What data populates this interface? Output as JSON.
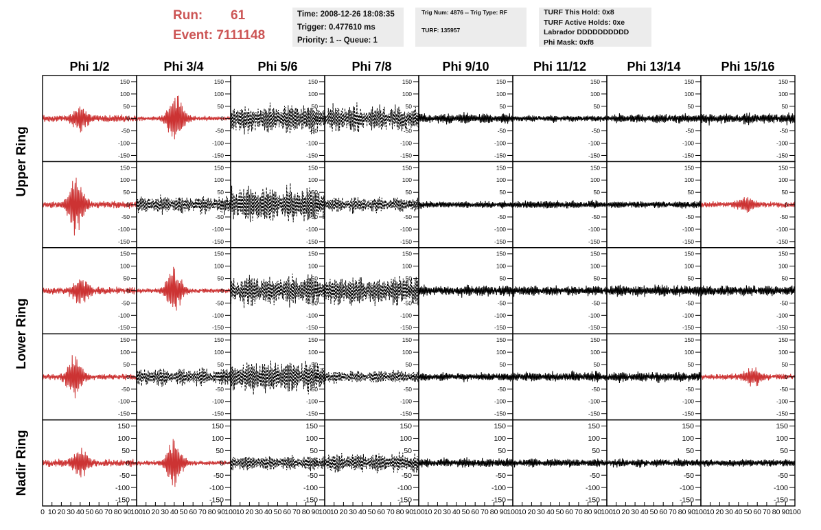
{
  "header": {
    "run_label": "Run:",
    "run_value": "61",
    "event_label": "Event:",
    "event_value": "7111148",
    "time_line": "Time: 2008-12-26 18:08:35",
    "trigger_line": "Trigger: 0.477610 ms",
    "priority_line": "Priority: 1 -- Queue: 1",
    "trig_line": "Trig Num: 4876 -- Trig Type: RF",
    "turf_line": "TURF: 135957",
    "hold_line": "TURF This Hold: 0x8",
    "active_holds_line": "TURF Active Holds: 0xe",
    "labrador_line": "Labrador DDDDDDDDDD",
    "phi_mask_line": "Phi Mask: 0xf8"
  },
  "chart_data": {
    "type": "line",
    "columns": [
      "Phi 1/2",
      "Phi 3/4",
      "Phi 5/6",
      "Phi 7/8",
      "Phi 9/10",
      "Phi 11/12",
      "Phi 13/14",
      "Phi 15/16"
    ],
    "rows": [
      "Upper Ring",
      "Upper Ring",
      "Lower Ring",
      "Lower Ring",
      "Nadir Ring"
    ],
    "row_labels": [
      "Upper Ring",
      "Lower Ring",
      "Nadir Ring"
    ],
    "xlim": [
      0,
      100
    ],
    "ylim": [
      -175,
      175
    ],
    "yticks": [
      -150,
      -100,
      -50,
      0,
      50,
      100,
      150
    ],
    "xticks": [
      0,
      10,
      20,
      30,
      40,
      50,
      60,
      70,
      80,
      90,
      100
    ],
    "xtick_labels_first": [
      "0",
      "10",
      "20",
      "30",
      "40",
      "50",
      "60",
      "70",
      "80",
      "90",
      "100"
    ],
    "xtick_labels_other": [
      "10",
      "20",
      "30",
      "40",
      "50",
      "60",
      "70",
      "80",
      "90",
      "100"
    ],
    "panels": [
      [
        {
          "color": "#cc3333",
          "dash": false,
          "amp": 45,
          "center": 40,
          "burst": true,
          "noise": 12
        },
        {
          "color": "#cc3333",
          "dash": false,
          "amp": 110,
          "center": 42,
          "burst": true,
          "noise": 8
        },
        {
          "color": "#000000",
          "dash": true,
          "amp": 65,
          "center": 50,
          "burst": false,
          "noise": 20
        },
        {
          "color": "#000000",
          "dash": true,
          "amp": 60,
          "center": 45,
          "burst": false,
          "noise": 25
        },
        {
          "color": "#000000",
          "dash": false,
          "amp": 22,
          "center": 50,
          "burst": false,
          "noise": 10
        },
        {
          "color": "#000000",
          "dash": false,
          "amp": 14,
          "center": 50,
          "burst": false,
          "noise": 8
        },
        {
          "color": "#000000",
          "dash": false,
          "amp": 20,
          "center": 50,
          "burst": false,
          "noise": 10
        },
        {
          "color": "#000000",
          "dash": false,
          "amp": 24,
          "center": 50,
          "burst": false,
          "noise": 12
        }
      ],
      [
        {
          "color": "#cc3333",
          "dash": false,
          "amp": 120,
          "center": 36,
          "burst": true,
          "noise": 12
        },
        {
          "color": "#000000",
          "dash": true,
          "amp": 40,
          "center": 50,
          "burst": false,
          "noise": 12
        },
        {
          "color": "#000000",
          "dash": true,
          "amp": 85,
          "center": 50,
          "burst": false,
          "noise": 20
        },
        {
          "color": "#000000",
          "dash": true,
          "amp": 35,
          "center": 50,
          "burst": false,
          "noise": 12
        },
        {
          "color": "#000000",
          "dash": false,
          "amp": 15,
          "center": 50,
          "burst": false,
          "noise": 8
        },
        {
          "color": "#000000",
          "dash": false,
          "amp": 18,
          "center": 50,
          "burst": false,
          "noise": 9
        },
        {
          "color": "#000000",
          "dash": false,
          "amp": 16,
          "center": 50,
          "burst": false,
          "noise": 8
        },
        {
          "color": "#cc3333",
          "dash": false,
          "amp": 30,
          "center": 48,
          "burst": true,
          "noise": 10
        }
      ],
      [
        {
          "color": "#cc3333",
          "dash": false,
          "amp": 55,
          "center": 40,
          "burst": true,
          "noise": 12
        },
        {
          "color": "#cc3333",
          "dash": false,
          "amp": 95,
          "center": 40,
          "burst": true,
          "noise": 8
        },
        {
          "color": "#000000",
          "dash": true,
          "amp": 70,
          "center": 50,
          "burst": false,
          "noise": 20
        },
        {
          "color": "#000000",
          "dash": true,
          "amp": 70,
          "center": 50,
          "burst": false,
          "noise": 20
        },
        {
          "color": "#000000",
          "dash": false,
          "amp": 24,
          "center": 50,
          "burst": false,
          "noise": 12
        },
        {
          "color": "#000000",
          "dash": false,
          "amp": 22,
          "center": 50,
          "burst": false,
          "noise": 12
        },
        {
          "color": "#000000",
          "dash": false,
          "amp": 26,
          "center": 50,
          "burst": false,
          "noise": 12
        },
        {
          "color": "#000000",
          "dash": false,
          "amp": 24,
          "center": 50,
          "burst": false,
          "noise": 12
        }
      ],
      [
        {
          "color": "#cc3333",
          "dash": false,
          "amp": 85,
          "center": 34,
          "burst": true,
          "noise": 10
        },
        {
          "color": "#000000",
          "dash": true,
          "amp": 40,
          "center": 50,
          "burst": false,
          "noise": 12
        },
        {
          "color": "#000000",
          "dash": true,
          "amp": 75,
          "center": 45,
          "burst": false,
          "noise": 20
        },
        {
          "color": "#000000",
          "dash": true,
          "amp": 30,
          "center": 50,
          "burst": false,
          "noise": 10
        },
        {
          "color": "#000000",
          "dash": false,
          "amp": 18,
          "center": 50,
          "burst": false,
          "noise": 9
        },
        {
          "color": "#000000",
          "dash": false,
          "amp": 22,
          "center": 50,
          "burst": false,
          "noise": 11
        },
        {
          "color": "#000000",
          "dash": false,
          "amp": 22,
          "center": 50,
          "burst": false,
          "noise": 11
        },
        {
          "color": "#cc3333",
          "dash": false,
          "amp": 35,
          "center": 55,
          "burst": true,
          "noise": 10
        }
      ],
      [
        {
          "color": "#cc3333",
          "dash": false,
          "amp": 55,
          "center": 40,
          "burst": true,
          "noise": 12
        },
        {
          "color": "#cc3333",
          "dash": false,
          "amp": 95,
          "center": 40,
          "burst": true,
          "noise": 8
        },
        {
          "color": "#000000",
          "dash": true,
          "amp": 35,
          "center": 50,
          "burst": false,
          "noise": 10
        },
        {
          "color": "#000000",
          "dash": true,
          "amp": 45,
          "center": 45,
          "burst": false,
          "noise": 15
        },
        {
          "color": "#000000",
          "dash": false,
          "amp": 20,
          "center": 50,
          "burst": false,
          "noise": 10
        },
        {
          "color": "#000000",
          "dash": false,
          "amp": 18,
          "center": 50,
          "burst": false,
          "noise": 9
        },
        {
          "color": "#000000",
          "dash": false,
          "amp": 18,
          "center": 50,
          "burst": false,
          "noise": 9
        },
        {
          "color": "#000000",
          "dash": false,
          "amp": 16,
          "center": 50,
          "burst": false,
          "noise": 8
        }
      ]
    ]
  }
}
